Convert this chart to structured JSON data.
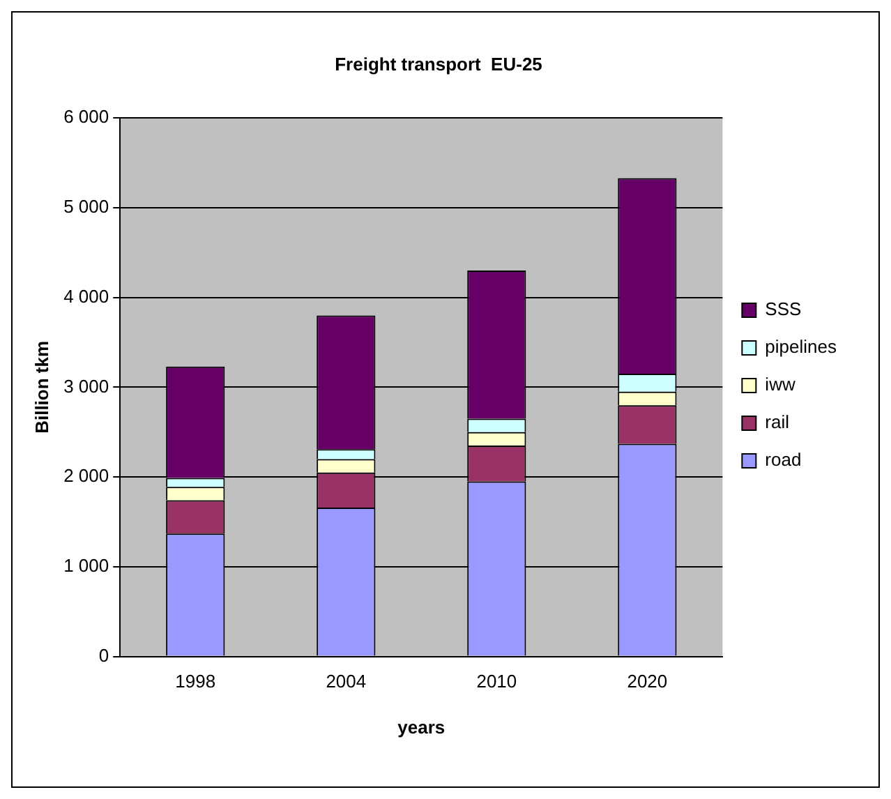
{
  "chart_data": {
    "type": "bar",
    "title": "Freight transport  EU-25",
    "xlabel": "years",
    "ylabel": "Billion tkm",
    "categories": [
      "1998",
      "2004",
      "2010",
      "2020"
    ],
    "stacked": true,
    "legend": "right",
    "grid": "y",
    "ylim": [
      0,
      6000
    ],
    "yticks": [
      {
        "value": 0,
        "label": "0"
      },
      {
        "value": 1000,
        "label": "1 000"
      },
      {
        "value": 2000,
        "label": "2 000"
      },
      {
        "value": 3000,
        "label": "3 000"
      },
      {
        "value": 4000,
        "label": "4 000"
      },
      {
        "value": 5000,
        "label": "5 000"
      },
      {
        "value": 6000,
        "label": "6 000"
      }
    ],
    "series": [
      {
        "name": "road",
        "color": "#9999ff",
        "values": [
          1370,
          1660,
          1950,
          2370
        ]
      },
      {
        "name": "rail",
        "color": "#993366",
        "values": [
          370,
          390,
          400,
          430
        ]
      },
      {
        "name": "iww",
        "color": "#ffffcc",
        "values": [
          150,
          150,
          150,
          150
        ]
      },
      {
        "name": "pipelines",
        "color": "#ccffff",
        "values": [
          100,
          110,
          150,
          200
        ]
      },
      {
        "name": "SSS",
        "color": "#660066",
        "values": [
          1240,
          1490,
          1650,
          2180
        ]
      }
    ]
  }
}
